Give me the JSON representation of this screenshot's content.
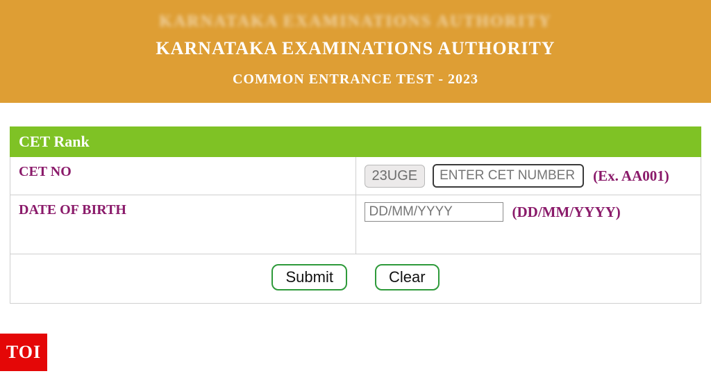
{
  "colors": {
    "header_bg": "#de9e34",
    "header_text": "#ffffff",
    "bar_bg": "#7fc225",
    "label_color": "#8a1a6a",
    "border_color": "#cfcfcf",
    "btn_border": "#2e9a3a",
    "logo_bg": "#e40707"
  },
  "header": {
    "blurred_top": "KARNATAKA EXAMINATIONS AUTHORITY",
    "title": "KARNATAKA EXAMINATIONS AUTHORITY",
    "subtitle": "COMMON ENTRANCE TEST - 2023"
  },
  "form": {
    "panel_title": "CET Rank",
    "rows": {
      "cet_no": {
        "label": "CET NO",
        "prefix": "23UGE",
        "placeholder": "ENTER CET NUMBER",
        "hint": "(Ex. AA001)"
      },
      "dob": {
        "label": "DATE OF BIRTH",
        "placeholder": "DD/MM/YYYY",
        "hint": "(DD/MM/YYYY)"
      }
    },
    "buttons": {
      "submit": "Submit",
      "clear": "Clear"
    }
  },
  "logo": {
    "text": "TOI"
  }
}
